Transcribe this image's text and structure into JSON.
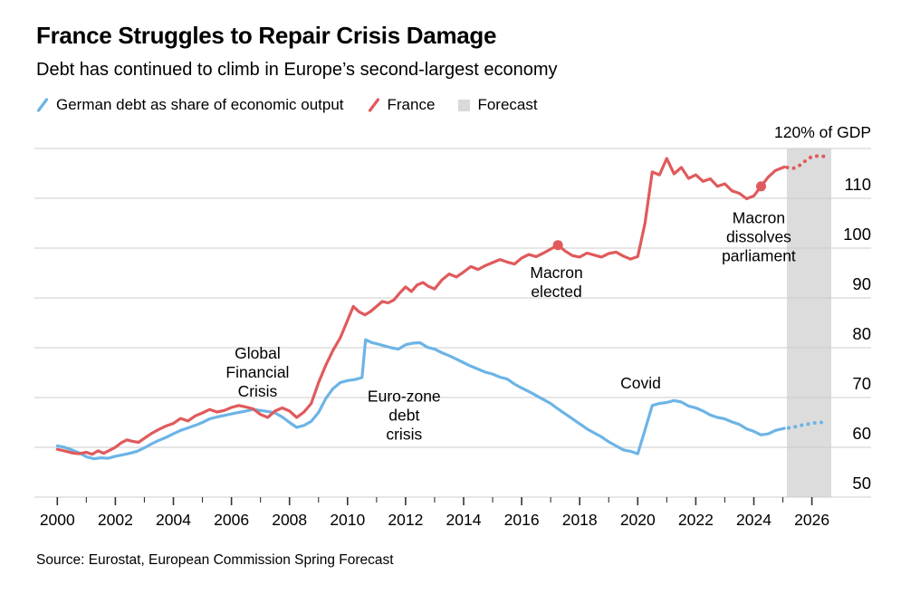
{
  "header": {
    "title": "France Struggles to Repair Crisis Damage",
    "subtitle": "Debt has continued to climb in Europe’s second-largest economy"
  },
  "legend": {
    "items": [
      {
        "label": "German debt as share of economic output",
        "color": "#6cb4e6",
        "icon": "slash"
      },
      {
        "label": "France",
        "color": "#e05a5c",
        "icon": "slash"
      },
      {
        "label": "Forecast",
        "color": "#d9d9d9",
        "icon": "square"
      }
    ]
  },
  "source": {
    "text": "Source: Eurostat, European Commission Spring Forecast"
  },
  "chart_data": {
    "type": "line",
    "title": "France Struggles to Repair Crisis Damage",
    "subtitle": "Debt has continued to climb in Europe’s second-largest economy",
    "unit_label": "120% of GDP",
    "ylabel": "% of GDP",
    "ylim": [
      50,
      120
    ],
    "y_gridlines": [
      120,
      110,
      100,
      90,
      80,
      70,
      60,
      50
    ],
    "y_tick_labels": [
      "110",
      "100",
      "90",
      "80",
      "70",
      "60",
      "50"
    ],
    "x_major_ticks": [
      2000,
      2002,
      2004,
      2006,
      2008,
      2010,
      2012,
      2014,
      2016,
      2018,
      2020,
      2022,
      2024,
      2026
    ],
    "x_minor_ticks": [
      2001,
      2003,
      2005,
      2007,
      2009,
      2011,
      2013,
      2015,
      2017,
      2019,
      2021,
      2023,
      2025
    ],
    "grid": true,
    "legend_position": "top-left",
    "colors": {
      "gridline": "#cccccc",
      "tick": "#333333",
      "text": "#000000",
      "forecast_band": "#dcdcdc"
    },
    "forecast": {
      "label": "Forecast",
      "start": 2025.14,
      "end": 2026.67
    },
    "series": [
      {
        "name": "Germany",
        "legend": "German debt as share of economic output",
        "color": "#6cb4e6",
        "solid": [
          [
            2000,
            60.3
          ],
          [
            2000.25,
            60.0
          ],
          [
            2000.5,
            59.5
          ],
          [
            2000.75,
            58.9
          ],
          [
            2001,
            58.1
          ],
          [
            2001.25,
            57.7
          ],
          [
            2001.5,
            57.9
          ],
          [
            2001.75,
            57.8
          ],
          [
            2002,
            58.2
          ],
          [
            2002.25,
            58.5
          ],
          [
            2002.5,
            58.8
          ],
          [
            2002.75,
            59.2
          ],
          [
            2003,
            59.9
          ],
          [
            2003.25,
            60.7
          ],
          [
            2003.5,
            61.4
          ],
          [
            2003.75,
            62.0
          ],
          [
            2004,
            62.7
          ],
          [
            2004.25,
            63.4
          ],
          [
            2004.5,
            63.9
          ],
          [
            2004.75,
            64.4
          ],
          [
            2005,
            65.0
          ],
          [
            2005.25,
            65.7
          ],
          [
            2005.5,
            66.1
          ],
          [
            2005.75,
            66.4
          ],
          [
            2006,
            66.7
          ],
          [
            2006.25,
            67.0
          ],
          [
            2006.5,
            67.3
          ],
          [
            2006.75,
            67.6
          ],
          [
            2007,
            67.4
          ],
          [
            2007.25,
            67.2
          ],
          [
            2007.5,
            66.9
          ],
          [
            2007.75,
            66.1
          ],
          [
            2008,
            65.0
          ],
          [
            2008.25,
            64.0
          ],
          [
            2008.5,
            64.4
          ],
          [
            2008.75,
            65.2
          ],
          [
            2009,
            67.0
          ],
          [
            2009.25,
            69.8
          ],
          [
            2009.5,
            71.8
          ],
          [
            2009.75,
            73.0
          ],
          [
            2010,
            73.4
          ],
          [
            2010.25,
            73.6
          ],
          [
            2010.5,
            74.0
          ],
          [
            2010.62,
            81.6
          ],
          [
            2010.85,
            81.0
          ],
          [
            2011,
            80.8
          ],
          [
            2011.25,
            80.4
          ],
          [
            2011.5,
            80.0
          ],
          [
            2011.75,
            79.7
          ],
          [
            2012,
            80.6
          ],
          [
            2012.25,
            80.9
          ],
          [
            2012.5,
            81.0
          ],
          [
            2012.75,
            80.1
          ],
          [
            2013,
            79.7
          ],
          [
            2013.25,
            79.0
          ],
          [
            2013.5,
            78.4
          ],
          [
            2013.75,
            77.7
          ],
          [
            2014,
            77.0
          ],
          [
            2014.25,
            76.3
          ],
          [
            2014.5,
            75.7
          ],
          [
            2014.75,
            75.1
          ],
          [
            2015,
            74.7
          ],
          [
            2015.25,
            74.1
          ],
          [
            2015.5,
            73.7
          ],
          [
            2015.75,
            72.7
          ],
          [
            2016,
            71.9
          ],
          [
            2016.25,
            71.2
          ],
          [
            2016.5,
            70.4
          ],
          [
            2016.75,
            69.6
          ],
          [
            2017,
            68.8
          ],
          [
            2017.25,
            67.7
          ],
          [
            2017.5,
            66.7
          ],
          [
            2017.75,
            65.7
          ],
          [
            2018,
            64.7
          ],
          [
            2018.25,
            63.7
          ],
          [
            2018.5,
            62.9
          ],
          [
            2018.75,
            62.1
          ],
          [
            2019,
            61.1
          ],
          [
            2019.25,
            60.3
          ],
          [
            2019.5,
            59.5
          ],
          [
            2019.75,
            59.2
          ],
          [
            2020,
            58.7
          ],
          [
            2020.25,
            63.5
          ],
          [
            2020.5,
            68.4
          ],
          [
            2020.75,
            68.8
          ],
          [
            2021,
            69.0
          ],
          [
            2021.25,
            69.4
          ],
          [
            2021.5,
            69.1
          ],
          [
            2021.75,
            68.3
          ],
          [
            2022,
            67.9
          ],
          [
            2022.25,
            67.3
          ],
          [
            2022.5,
            66.5
          ],
          [
            2022.75,
            66.0
          ],
          [
            2023,
            65.7
          ],
          [
            2023.25,
            65.1
          ],
          [
            2023.5,
            64.6
          ],
          [
            2023.75,
            63.7
          ],
          [
            2024,
            63.2
          ],
          [
            2024.25,
            62.5
          ],
          [
            2024.5,
            62.7
          ],
          [
            2024.75,
            63.4
          ],
          [
            2025.05,
            63.8
          ]
        ],
        "forecast": [
          [
            2025.2,
            63.9
          ],
          [
            2025.4,
            64.1
          ],
          [
            2025.6,
            64.4
          ],
          [
            2025.8,
            64.6
          ],
          [
            2026.0,
            64.8
          ],
          [
            2026.2,
            65.0
          ],
          [
            2026.4,
            65.0
          ],
          [
            2026.55,
            65.0
          ]
        ],
        "markers": []
      },
      {
        "name": "France",
        "legend": "France",
        "color": "#e05a5c",
        "solid": [
          [
            2000,
            59.6
          ],
          [
            2000.25,
            59.3
          ],
          [
            2000.5,
            58.9
          ],
          [
            2000.75,
            58.7
          ],
          [
            2001,
            59.0
          ],
          [
            2001.2,
            58.6
          ],
          [
            2001.4,
            59.3
          ],
          [
            2001.6,
            58.8
          ],
          [
            2001.8,
            59.4
          ],
          [
            2002,
            60.0
          ],
          [
            2002.2,
            60.9
          ],
          [
            2002.4,
            61.5
          ],
          [
            2002.6,
            61.2
          ],
          [
            2002.8,
            61.0
          ],
          [
            2003,
            61.8
          ],
          [
            2003.25,
            62.8
          ],
          [
            2003.5,
            63.6
          ],
          [
            2003.75,
            64.3
          ],
          [
            2004,
            64.8
          ],
          [
            2004.25,
            65.8
          ],
          [
            2004.5,
            65.3
          ],
          [
            2004.75,
            66.3
          ],
          [
            2005,
            66.9
          ],
          [
            2005.25,
            67.6
          ],
          [
            2005.5,
            67.1
          ],
          [
            2005.75,
            67.4
          ],
          [
            2006,
            68.0
          ],
          [
            2006.25,
            68.4
          ],
          [
            2006.5,
            68.1
          ],
          [
            2006.75,
            67.7
          ],
          [
            2007,
            66.6
          ],
          [
            2007.25,
            66.0
          ],
          [
            2007.5,
            67.3
          ],
          [
            2007.75,
            67.9
          ],
          [
            2008,
            67.3
          ],
          [
            2008.25,
            66.0
          ],
          [
            2008.5,
            67.1
          ],
          [
            2008.75,
            68.8
          ],
          [
            2009,
            73.0
          ],
          [
            2009.25,
            76.5
          ],
          [
            2009.5,
            79.5
          ],
          [
            2009.75,
            82.0
          ],
          [
            2010,
            85.5
          ],
          [
            2010.2,
            88.3
          ],
          [
            2010.4,
            87.2
          ],
          [
            2010.6,
            86.6
          ],
          [
            2010.8,
            87.3
          ],
          [
            2011,
            88.3
          ],
          [
            2011.2,
            89.3
          ],
          [
            2011.4,
            89.0
          ],
          [
            2011.6,
            89.6
          ],
          [
            2011.8,
            91.0
          ],
          [
            2012,
            92.2
          ],
          [
            2012.2,
            91.3
          ],
          [
            2012.4,
            92.6
          ],
          [
            2012.6,
            93.1
          ],
          [
            2012.8,
            92.3
          ],
          [
            2013,
            91.8
          ],
          [
            2013.25,
            93.6
          ],
          [
            2013.5,
            94.8
          ],
          [
            2013.75,
            94.2
          ],
          [
            2014,
            95.2
          ],
          [
            2014.25,
            96.3
          ],
          [
            2014.5,
            95.7
          ],
          [
            2014.75,
            96.5
          ],
          [
            2015,
            97.1
          ],
          [
            2015.25,
            97.7
          ],
          [
            2015.5,
            97.2
          ],
          [
            2015.75,
            96.8
          ],
          [
            2016,
            98.0
          ],
          [
            2016.25,
            98.7
          ],
          [
            2016.5,
            98.3
          ],
          [
            2016.75,
            99.0
          ],
          [
            2017,
            99.8
          ],
          [
            2017.25,
            100.6
          ],
          [
            2017.5,
            99.4
          ],
          [
            2017.75,
            98.5
          ],
          [
            2018,
            98.2
          ],
          [
            2018.25,
            99.0
          ],
          [
            2018.5,
            98.6
          ],
          [
            2018.75,
            98.2
          ],
          [
            2019,
            98.9
          ],
          [
            2019.25,
            99.2
          ],
          [
            2019.5,
            98.4
          ],
          [
            2019.75,
            97.8
          ],
          [
            2020,
            98.3
          ],
          [
            2020.25,
            105.0
          ],
          [
            2020.5,
            115.3
          ],
          [
            2020.75,
            114.7
          ],
          [
            2021,
            118.0
          ],
          [
            2021.25,
            114.9
          ],
          [
            2021.5,
            116.2
          ],
          [
            2021.75,
            114.0
          ],
          [
            2022,
            114.7
          ],
          [
            2022.25,
            113.4
          ],
          [
            2022.5,
            113.9
          ],
          [
            2022.75,
            112.4
          ],
          [
            2023,
            112.9
          ],
          [
            2023.25,
            111.5
          ],
          [
            2023.5,
            111.0
          ],
          [
            2023.75,
            109.9
          ],
          [
            2024,
            110.5
          ],
          [
            2024.25,
            112.4
          ],
          [
            2024.5,
            114.3
          ],
          [
            2024.75,
            115.6
          ],
          [
            2025.05,
            116.3
          ]
        ],
        "forecast": [
          [
            2025.15,
            116.2
          ],
          [
            2025.35,
            116.0
          ],
          [
            2025.55,
            116.5
          ],
          [
            2025.75,
            117.4
          ],
          [
            2025.95,
            118.2
          ],
          [
            2026.15,
            118.5
          ],
          [
            2026.35,
            118.4
          ],
          [
            2026.55,
            118.5
          ]
        ],
        "markers": [
          {
            "x": 2017.25,
            "y": 100.6,
            "event": "Macron elected"
          },
          {
            "x": 2024.25,
            "y": 112.4,
            "event": "Macron dissolves parliament"
          }
        ]
      }
    ],
    "annotations": [
      {
        "x": 2006.9,
        "y": 75.1,
        "lines": [
          "Global",
          "Financial",
          "Crisis"
        ]
      },
      {
        "x": 2011.95,
        "y": 66.5,
        "lines": [
          "Euro-zone",
          "debt",
          "crisis"
        ]
      },
      {
        "x": 2017.2,
        "y": 93.2,
        "lines": [
          "Macron",
          "elected"
        ]
      },
      {
        "x": 2020.1,
        "y": 72.9,
        "lines": [
          "Covid"
        ]
      },
      {
        "x": 2024.17,
        "y": 102.3,
        "lines": [
          "Macron",
          "dissolves",
          "parliament"
        ]
      }
    ]
  }
}
